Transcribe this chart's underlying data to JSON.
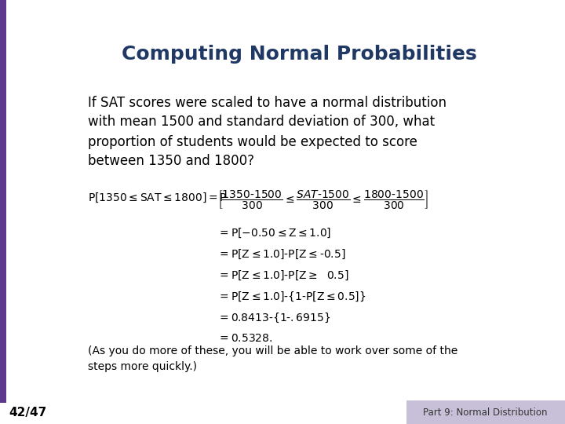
{
  "title": "Computing Normal Probabilities",
  "title_color": "#1F3864",
  "title_fontsize": 18,
  "bg_color": "#FFFFFF",
  "left_bar_color": "#5B3A8C",
  "bottom_bar_color": "#FFFFFF",
  "slide_number": "42/47",
  "footer_text": "Part 9: Normal Distribution",
  "footer_bg": "#C8C0D8",
  "slide_number_color": "#000000",
  "footer_text_color": "#333333",
  "body_text_color": "#000000",
  "body_fontsize": 12,
  "math_fontsize": 10
}
